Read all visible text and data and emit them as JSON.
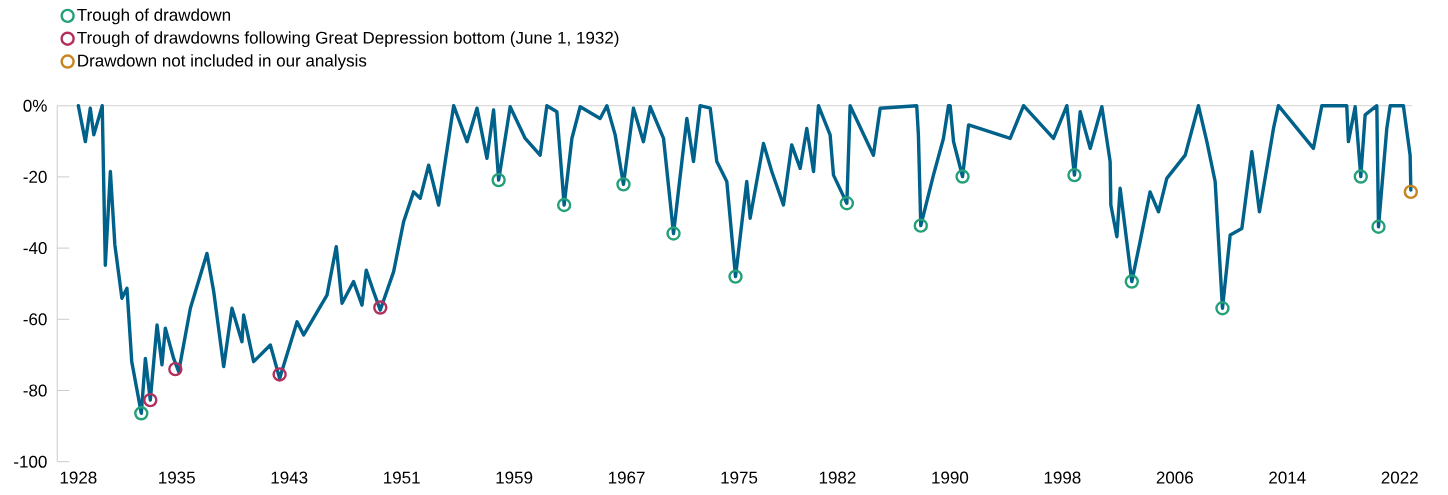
{
  "chart_data": {
    "type": "line",
    "xlim": [
      1926.5,
      2022.9
    ],
    "xticks": [
      1928,
      1935,
      1943,
      1951,
      1959,
      1967,
      1975,
      1982,
      1990,
      1998,
      2006,
      2014,
      2022
    ],
    "ylim": [
      -100,
      0
    ],
    "yticks": [
      {
        "value": 0,
        "label": "0%"
      },
      -20,
      -40,
      -60,
      -80,
      -100
    ],
    "legend": "top left",
    "ref_lines": [
      {
        "axis": "y",
        "value": 0,
        "color": "#dcdcdc"
      }
    ],
    "series": [
      {
        "color": "#00628b",
        "x": [
          1928.0,
          1928.5,
          1928.85,
          1929.1,
          1929.7,
          1929.92,
          1930.28,
          1930.6,
          1931.1,
          1931.46,
          1931.8,
          1932.48,
          1932.77,
          1933.12,
          1933.6,
          1933.95,
          1934.19,
          1934.78,
          1935.14,
          1935.97,
          1937.15,
          1937.63,
          1938.34,
          1938.93,
          1939.64,
          1939.76,
          1940.47,
          1941.66,
          1942.32,
          1943.56,
          1944.03,
          1945.69,
          1946.35,
          1946.76,
          1947.58,
          1948.18,
          1948.48,
          1949.0,
          1949.48,
          1950.43,
          1951.14,
          1951.85,
          1952.32,
          1952.92,
          1953.63,
          1954.7,
          1955.65,
          1956.36,
          1957.07,
          1957.54,
          1957.9,
          1958.72,
          1959.79,
          1960.85,
          1961.33,
          1962.04,
          1962.56,
          1963.11,
          1963.7,
          1965.12,
          1965.6,
          1966.19,
          1966.78,
          1967.49,
          1968.2,
          1968.68,
          1969.63,
          1970.34,
          1971.29,
          1971.76,
          1972.23,
          1972.95,
          1973.42,
          1974.13,
          1974.75,
          1975.55,
          1975.79,
          1976.74,
          1977.33,
          1978.16,
          1978.75,
          1979.35,
          1979.82,
          1980.3,
          1980.65,
          1981.48,
          1981.72,
          1982.67,
          1982.9,
          1984.56,
          1985.04,
          1987.64,
          1987.76,
          1987.93,
          1988.83,
          1989.54,
          1989.9,
          1990.02,
          1990.26,
          1990.9,
          1991.33,
          1994.29,
          1995.24,
          1997.37,
          1998.32,
          1998.86,
          1999.27,
          1999.98,
          2000.81,
          2001.4,
          2001.45,
          2001.88,
          2002.11,
          2002.94,
          2003.53,
          2004.24,
          2004.84,
          2005.43,
          2006.74,
          2007.68,
          2008.28,
          2008.87,
          2009.39,
          2009.94,
          2010.77,
          2011.48,
          2012.02,
          2013.02,
          2013.37,
          2015.86,
          2016.46,
          2018.23,
          2018.35,
          2018.83,
          2019.23,
          2019.54,
          2020.37,
          2020.49,
          2021.08,
          2021.32,
          2022.26,
          2022.74,
          2022.79
        ],
        "values": [
          0,
          -10.1,
          -0.7,
          -8.2,
          0,
          -44.8,
          -18.5,
          -39.1,
          -54.1,
          -51.3,
          -71.9,
          -86.4,
          -71,
          -82.7,
          -61.6,
          -72.8,
          -62.5,
          -71,
          -74.7,
          -56.9,
          -41.5,
          -52.2,
          -73.3,
          -56.9,
          -66.3,
          -58.8,
          -71.9,
          -67.2,
          -76.6,
          -60.7,
          -64.4,
          -53.2,
          -39.6,
          -55.5,
          -49.4,
          -56,
          -46.2,
          -52.2,
          -57.4,
          -46.6,
          -32.6,
          -24.2,
          -26,
          -16.7,
          -27.9,
          0,
          -10.1,
          -0.7,
          -14.8,
          -1.2,
          -20.9,
          -0.3,
          -9.2,
          -13.9,
          0,
          -1.7,
          -27.9,
          -9.2,
          -0.3,
          -3.6,
          0,
          -8.2,
          -22.1,
          -0.7,
          -10.1,
          -0.3,
          -9.2,
          -35.9,
          -3.6,
          -15.7,
          0,
          -0.7,
          -15.7,
          -21.3,
          -48,
          -21.3,
          -31.6,
          -10.6,
          -18.5,
          -27.9,
          -11,
          -17.6,
          -6.4,
          -18.5,
          0,
          -8.2,
          -19.5,
          -27.4,
          0,
          -13.9,
          -0.7,
          0,
          -8.2,
          -33.7,
          -19.5,
          -9.2,
          0,
          0,
          -10.1,
          -19.9,
          -5.4,
          -9.2,
          0,
          -9.2,
          0,
          -19.5,
          -1.7,
          -12,
          -0.3,
          -15.7,
          -27.9,
          -36.8,
          -23.2,
          -49.4,
          -38.2,
          -24.2,
          -29.8,
          -20.4,
          -13.9,
          0,
          -10.1,
          -21.3,
          -56.9,
          -36.3,
          -34.5,
          -12.9,
          -29.8,
          -6.4,
          0,
          -12,
          0,
          0,
          -10.1,
          -0.3,
          -19.9,
          -2.6,
          0,
          -34,
          -6.4,
          0,
          0,
          -13.9,
          -23.7
        ]
      },
      {
        "type": "scatter",
        "marker": "circle",
        "name": "Trough of drawdown",
        "color": "#23a07a",
        "x": [
          1932.48,
          1957.9,
          1962.56,
          1966.78,
          1970.34,
          1974.75,
          1982.67,
          1987.93,
          1990.9,
          1998.86,
          2002.94,
          2009.39,
          2019.23,
          2020.49
        ],
        "values": [
          -86.4,
          -20.9,
          -27.9,
          -22.1,
          -35.9,
          -48,
          -27.4,
          -33.7,
          -19.9,
          -19.5,
          -49.4,
          -56.9,
          -19.9,
          -34
        ]
      },
      {
        "type": "scatter",
        "marker": "circle",
        "name": "Trough of drawdowns following Great Depression bottom (June 1, 1932)",
        "color": "#b3305e",
        "x": [
          1933.12,
          1934.9,
          1942.32,
          1949.48
        ],
        "values": [
          -82.7,
          -74,
          -75.5,
          -56.7
        ]
      },
      {
        "type": "scatter",
        "marker": "circle",
        "name": "Drawdown not included in our analysis",
        "color": "#c8841e",
        "x": [
          2022.79
        ],
        "values": [
          -24.2
        ]
      }
    ]
  }
}
